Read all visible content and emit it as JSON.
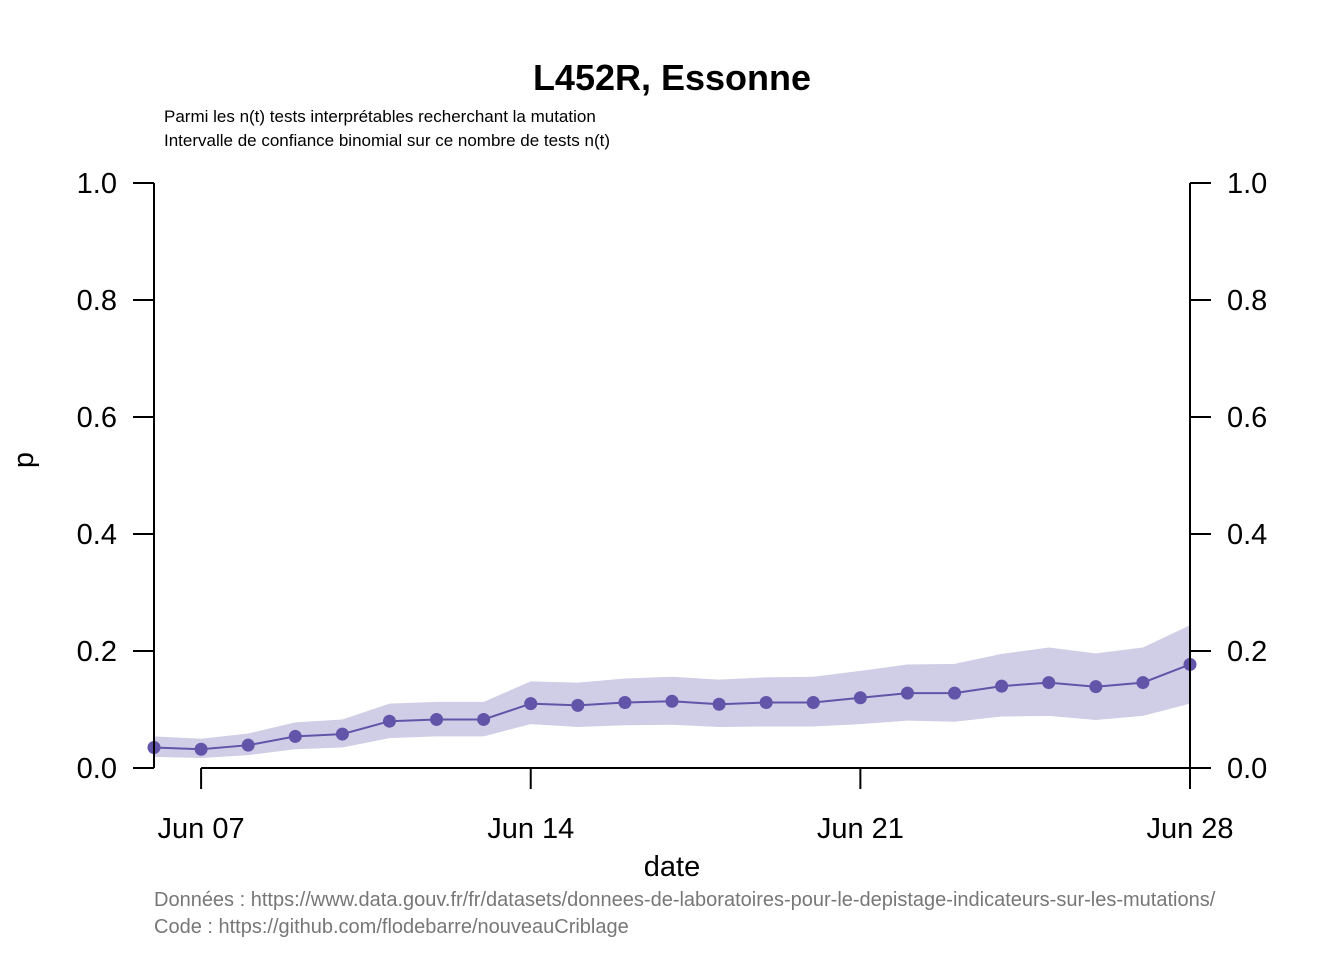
{
  "chart_data": {
    "type": "line",
    "title": "L452R, Essonne",
    "subtitle_lines": [
      "Parmi les n(t) tests interprétables recherchant la mutation",
      "Intervalle de confiance binomial sur ce nombre de tests n(t)"
    ],
    "xlabel": "date",
    "ylabel": "p",
    "ylim": [
      0,
      1
    ],
    "y_ticks": [
      "0.0",
      "0.2",
      "0.4",
      "0.6",
      "0.8",
      "1.0"
    ],
    "y_tick_values": [
      0,
      0.2,
      0.4,
      0.6,
      0.8,
      1.0
    ],
    "x_tick_labels": [
      "Jun 07",
      "Jun 14",
      "Jun 21",
      "Jun 28"
    ],
    "x_tick_days": [
      7,
      14,
      21,
      28
    ],
    "x_range_days": [
      6,
      28
    ],
    "grid": false,
    "right_axis": true,
    "series": [
      {
        "days": [
          6,
          7,
          8,
          9,
          10,
          11,
          12,
          13,
          14,
          15,
          16,
          17,
          18,
          19,
          20,
          21,
          22,
          23,
          24,
          25,
          26,
          27,
          28
        ],
        "values": [
          0.035,
          0.032,
          0.039,
          0.054,
          0.058,
          0.08,
          0.083,
          0.083,
          0.11,
          0.107,
          0.112,
          0.114,
          0.109,
          0.112,
          0.112,
          0.12,
          0.128,
          0.128,
          0.14,
          0.146,
          0.139,
          0.146,
          0.177
        ],
        "ci_lower": [
          0.019,
          0.017,
          0.022,
          0.032,
          0.035,
          0.051,
          0.054,
          0.054,
          0.075,
          0.07,
          0.073,
          0.074,
          0.07,
          0.071,
          0.071,
          0.075,
          0.081,
          0.079,
          0.088,
          0.089,
          0.082,
          0.089,
          0.11
        ],
        "ci_upper": [
          0.054,
          0.05,
          0.059,
          0.078,
          0.083,
          0.11,
          0.113,
          0.113,
          0.148,
          0.146,
          0.153,
          0.156,
          0.151,
          0.155,
          0.156,
          0.166,
          0.177,
          0.178,
          0.195,
          0.206,
          0.196,
          0.206,
          0.244
        ]
      }
    ],
    "colors": {
      "line": "#6254a8",
      "band": "#d0cde6",
      "caption": "#777777"
    }
  },
  "caption": {
    "data_line": "Données : https://www.data.gouv.fr/fr/datasets/donnees-de-laboratoires-pour-le-depistage-indicateurs-sur-les-mutations/",
    "code_line": "Code : https://github.com/flodebarre/nouveauCriblage"
  }
}
